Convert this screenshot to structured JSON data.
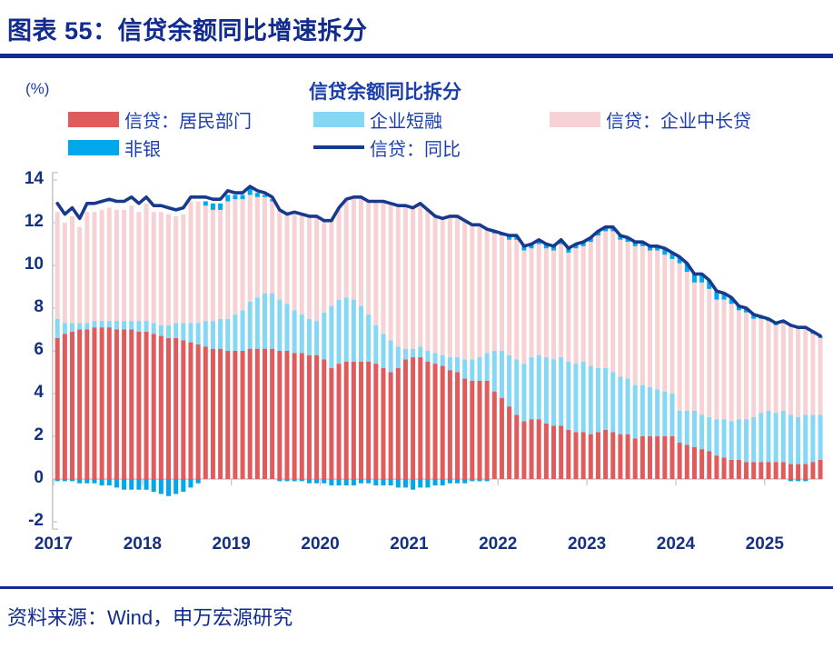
{
  "header": {
    "title": "图表 55：信贷余额同比增速拆分"
  },
  "chart": {
    "unit_label": "(%)",
    "subtitle": "信贷余额同比拆分"
  },
  "legend": {
    "items": [
      {
        "label": "信贷：居民部门",
        "color": "#E05C5C",
        "type": "swatch"
      },
      {
        "label": "企业短融",
        "color": "#85D7F4",
        "type": "swatch"
      },
      {
        "label": "信贷：企业中长贷",
        "color": "#F6D2D5",
        "type": "swatch"
      },
      {
        "label": "非银",
        "color": "#00A7EB",
        "type": "swatch"
      },
      {
        "label": "信贷：同比",
        "color": "#17398E",
        "type": "line"
      }
    ]
  },
  "chart_data": {
    "type": "bar",
    "subtype": "stacked-bars-with-line",
    "title": "信贷余额同比拆分",
    "ylabel": "(%)",
    "ylim": [
      -2,
      14
    ],
    "y_ticks": [
      -2,
      0,
      2,
      4,
      6,
      8,
      10,
      12,
      14
    ],
    "x_tick_years": [
      "2017",
      "2018",
      "2019",
      "2020",
      "2021",
      "2022",
      "2023",
      "2024",
      "2025"
    ],
    "grid": false,
    "legend_position": "top",
    "categories": [
      "2017-01",
      "2017-02",
      "2017-03",
      "2017-04",
      "2017-05",
      "2017-06",
      "2017-07",
      "2017-08",
      "2017-09",
      "2017-10",
      "2017-11",
      "2017-12",
      "2018-01",
      "2018-02",
      "2018-03",
      "2018-04",
      "2018-05",
      "2018-06",
      "2018-07",
      "2018-08",
      "2018-09",
      "2018-10",
      "2018-11",
      "2018-12",
      "2019-01",
      "2019-02",
      "2019-03",
      "2019-04",
      "2019-05",
      "2019-06",
      "2019-07",
      "2019-08",
      "2019-09",
      "2019-10",
      "2019-11",
      "2019-12",
      "2020-01",
      "2020-02",
      "2020-03",
      "2020-04",
      "2020-05",
      "2020-06",
      "2020-07",
      "2020-08",
      "2020-09",
      "2020-10",
      "2020-11",
      "2020-12",
      "2021-01",
      "2021-02",
      "2021-03",
      "2021-04",
      "2021-05",
      "2021-06",
      "2021-07",
      "2021-08",
      "2021-09",
      "2021-10",
      "2021-11",
      "2021-12",
      "2022-01",
      "2022-02",
      "2022-03",
      "2022-04",
      "2022-05",
      "2022-06",
      "2022-07",
      "2022-08",
      "2022-09",
      "2022-10",
      "2022-11",
      "2022-12",
      "2023-01",
      "2023-02",
      "2023-03",
      "2023-04",
      "2023-05",
      "2023-06",
      "2023-07",
      "2023-08",
      "2023-09",
      "2023-10",
      "2023-11",
      "2023-12",
      "2024-01",
      "2024-02",
      "2024-03",
      "2024-04",
      "2024-05",
      "2024-06",
      "2024-07",
      "2024-08",
      "2024-09",
      "2024-10",
      "2024-11",
      "2024-12",
      "2025-01",
      "2025-02",
      "2025-03",
      "2025-04",
      "2025-05",
      "2025-06",
      "2025-07",
      "2025-08"
    ],
    "series": [
      {
        "name": "信贷：居民部门",
        "type": "bar",
        "color": "#E05C5C",
        "values": [
          6.6,
          6.8,
          6.9,
          7.0,
          7.0,
          7.1,
          7.1,
          7.1,
          7.0,
          7.0,
          7.0,
          6.9,
          6.9,
          6.8,
          6.7,
          6.6,
          6.6,
          6.5,
          6.4,
          6.3,
          6.2,
          6.1,
          6.1,
          6.0,
          6.0,
          6.0,
          6.1,
          6.1,
          6.1,
          6.1,
          6.0,
          6.0,
          5.9,
          5.9,
          5.8,
          5.8,
          5.6,
          5.2,
          5.4,
          5.5,
          5.5,
          5.5,
          5.5,
          5.4,
          5.2,
          5.0,
          5.2,
          5.6,
          5.7,
          5.7,
          5.5,
          5.4,
          5.3,
          5.1,
          5.0,
          4.7,
          4.6,
          4.6,
          4.6,
          4.1,
          3.8,
          3.4,
          3.0,
          2.7,
          2.8,
          2.8,
          2.6,
          2.5,
          2.5,
          2.3,
          2.2,
          2.2,
          2.1,
          2.2,
          2.3,
          2.2,
          2.1,
          2.1,
          1.9,
          2.0,
          2.0,
          2.0,
          2.0,
          2.0,
          1.7,
          1.6,
          1.5,
          1.4,
          1.3,
          1.1,
          1.0,
          0.9,
          0.9,
          0.8,
          0.8,
          0.8,
          0.8,
          0.8,
          0.8,
          0.7,
          0.7,
          0.7,
          0.8,
          0.9
        ]
      },
      {
        "name": "企业短融",
        "type": "bar",
        "color": "#85D7F4",
        "values": [
          0.9,
          0.5,
          0.4,
          0.3,
          0.3,
          0.3,
          0.3,
          0.3,
          0.4,
          0.4,
          0.4,
          0.5,
          0.5,
          0.5,
          0.5,
          0.6,
          0.7,
          0.8,
          0.9,
          1.0,
          1.2,
          1.3,
          1.4,
          1.5,
          1.7,
          1.9,
          2.2,
          2.4,
          2.6,
          2.6,
          2.4,
          2.2,
          2.0,
          1.8,
          1.7,
          1.6,
          2.2,
          2.9,
          3.0,
          3.0,
          2.9,
          2.6,
          2.2,
          1.8,
          1.6,
          1.5,
          1.0,
          0.5,
          0.4,
          0.5,
          0.5,
          0.5,
          0.5,
          0.6,
          0.7,
          0.9,
          1.0,
          1.1,
          1.3,
          1.9,
          2.2,
          2.4,
          2.6,
          2.7,
          2.9,
          3.0,
          3.1,
          3.1,
          3.2,
          3.2,
          3.2,
          3.3,
          3.2,
          3.0,
          2.9,
          2.8,
          2.7,
          2.6,
          2.5,
          2.4,
          2.3,
          2.2,
          2.1,
          2.0,
          1.5,
          1.6,
          1.7,
          1.6,
          1.6,
          1.7,
          1.8,
          1.8,
          1.9,
          2.0,
          2.1,
          2.3,
          2.4,
          2.3,
          2.4,
          2.3,
          2.2,
          2.3,
          2.2,
          2.1
        ]
      },
      {
        "name": "信贷：企业中长贷",
        "type": "bar",
        "color": "#F6D2D5",
        "values": [
          5.0,
          4.7,
          5.0,
          4.5,
          5.2,
          5.1,
          5.2,
          5.3,
          5.2,
          5.2,
          5.4,
          5.1,
          5.5,
          5.2,
          5.3,
          5.2,
          5.0,
          5.1,
          5.7,
          5.7,
          5.4,
          5.2,
          5.1,
          5.5,
          5.4,
          5.2,
          5.0,
          4.7,
          4.5,
          4.3,
          4.2,
          4.2,
          4.6,
          4.7,
          4.8,
          4.9,
          4.3,
          4.0,
          4.3,
          4.6,
          4.8,
          5.1,
          5.3,
          5.8,
          6.2,
          6.4,
          6.6,
          6.7,
          6.6,
          6.7,
          6.6,
          6.4,
          6.4,
          6.6,
          6.6,
          6.5,
          6.3,
          6.2,
          5.8,
          5.5,
          5.4,
          5.4,
          5.6,
          5.3,
          5.1,
          5.2,
          5.1,
          5.1,
          5.3,
          5.1,
          5.4,
          5.4,
          5.8,
          6.2,
          6.4,
          6.6,
          6.4,
          6.4,
          6.5,
          6.5,
          6.4,
          6.5,
          6.4,
          6.3,
          6.9,
          6.5,
          6.0,
          6.2,
          6.0,
          5.6,
          5.6,
          5.5,
          5.1,
          5.0,
          4.6,
          4.4,
          4.2,
          4.1,
          4.1,
          4.2,
          4.2,
          4.1,
          3.8,
          3.6
        ]
      },
      {
        "name": "非银",
        "type": "bar",
        "color": "#00A7EB",
        "values": [
          -0.1,
          -0.1,
          -0.1,
          -0.2,
          -0.2,
          -0.2,
          -0.3,
          -0.3,
          -0.4,
          -0.5,
          -0.5,
          -0.5,
          -0.5,
          -0.6,
          -0.7,
          -0.8,
          -0.7,
          -0.6,
          -0.4,
          -0.2,
          0.2,
          0.3,
          0.3,
          0.3,
          0.2,
          0.2,
          0.3,
          0.2,
          0.1,
          0.1,
          -0.1,
          -0.1,
          -0.1,
          -0.1,
          -0.2,
          -0.2,
          -0.2,
          -0.3,
          -0.3,
          -0.3,
          -0.3,
          -0.2,
          -0.2,
          -0.3,
          -0.3,
          -0.3,
          -0.4,
          -0.4,
          -0.5,
          -0.4,
          -0.4,
          -0.3,
          -0.3,
          -0.2,
          -0.2,
          -0.2,
          -0.1,
          -0.1,
          -0.1,
          0.1,
          0.1,
          0.2,
          0.2,
          0.2,
          0.2,
          0.2,
          0.2,
          0.2,
          0.2,
          0.2,
          0.2,
          0.2,
          0.2,
          0.2,
          0.2,
          0.2,
          0.2,
          0.2,
          0.2,
          0.2,
          0.2,
          0.2,
          0.3,
          0.3,
          0.3,
          0.4,
          0.4,
          0.4,
          0.4,
          0.4,
          0.3,
          0.3,
          0.2,
          0.2,
          0.2,
          0.1,
          0.1,
          0.1,
          0.1,
          -0.1,
          -0.1,
          -0.1,
          0.1,
          0.1
        ]
      },
      {
        "name": "信贷：同比",
        "type": "line",
        "color": "#17398E",
        "values": [
          12.9,
          12.4,
          12.7,
          12.2,
          12.9,
          12.9,
          13.0,
          13.1,
          13.0,
          13.0,
          13.2,
          12.9,
          13.2,
          12.8,
          12.8,
          12.7,
          12.6,
          12.7,
          13.2,
          13.2,
          13.2,
          13.1,
          13.1,
          13.5,
          13.4,
          13.4,
          13.7,
          13.5,
          13.4,
          13.2,
          12.6,
          12.4,
          12.5,
          12.4,
          12.3,
          12.3,
          12.1,
          12.1,
          12.7,
          13.1,
          13.2,
          13.2,
          13.0,
          13.0,
          13.0,
          12.9,
          12.8,
          12.8,
          12.7,
          12.9,
          12.6,
          12.3,
          12.2,
          12.3,
          12.3,
          12.1,
          11.9,
          11.9,
          11.7,
          11.6,
          11.5,
          11.4,
          11.4,
          10.9,
          11.0,
          11.2,
          11.0,
          10.9,
          11.2,
          10.8,
          11.0,
          11.1,
          11.3,
          11.6,
          11.8,
          11.8,
          11.4,
          11.3,
          11.1,
          11.1,
          10.9,
          10.9,
          10.8,
          10.6,
          10.4,
          10.1,
          9.6,
          9.6,
          9.3,
          8.8,
          8.7,
          8.5,
          8.1,
          8.0,
          7.7,
          7.6,
          7.5,
          7.3,
          7.4,
          7.2,
          7.1,
          7.1,
          6.9,
          6.7
        ]
      }
    ]
  },
  "footer": {
    "source": "资料来源：Wind，申万宏源研究"
  },
  "colors": {
    "title_navy": "#112C8E",
    "text_blue": "#1B3EAE",
    "axis_label_navy": "#14307E",
    "axis_gray": "#C8C8C8",
    "line_navy": "#17398E"
  }
}
